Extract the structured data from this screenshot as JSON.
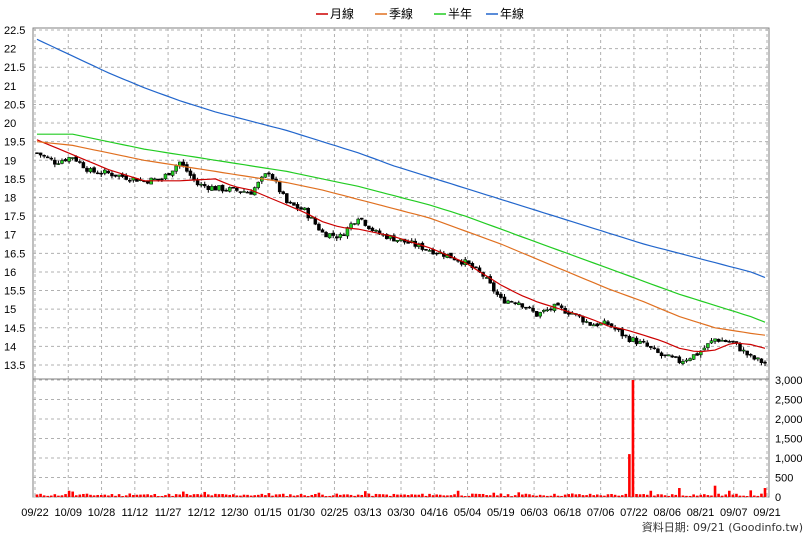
{
  "chart_data": [
    {
      "type": "candlestick",
      "title": "",
      "legend_position": "top-center",
      "legend": [
        {
          "name": "月線",
          "color": "#cc0000"
        },
        {
          "name": "季線",
          "color": "#e07020"
        },
        {
          "name": "半年",
          "color": "#22cc22"
        },
        {
          "name": "年線",
          "color": "#2266cc"
        }
      ],
      "ylim": [
        13.25,
        22.5
      ],
      "yticks": [
        "13.5",
        "14",
        "14.5",
        "15",
        "15.5",
        "16",
        "16.5",
        "17",
        "17.5",
        "18",
        "18.5",
        "19",
        "19.5",
        "20",
        "20.5",
        "21",
        "21.5",
        "22",
        "22.5"
      ],
      "x_labels": [
        "09/22",
        "10/09",
        "10/28",
        "11/12",
        "11/27",
        "12/12",
        "12/30",
        "01/15",
        "01/30",
        "02/25",
        "03/13",
        "03/30",
        "04/16",
        "05/04",
        "05/19",
        "06/03",
        "06/18",
        "07/06",
        "07/22",
        "08/06",
        "08/21",
        "09/07",
        "09/21"
      ],
      "close_path": [
        [
          0,
          19.2
        ],
        [
          5,
          18.95
        ],
        [
          10,
          19.1
        ],
        [
          15,
          18.7
        ],
        [
          20,
          18.65
        ],
        [
          25,
          18.55
        ],
        [
          30,
          18.45
        ],
        [
          35,
          18.5
        ],
        [
          40,
          18.95
        ],
        [
          45,
          18.35
        ],
        [
          50,
          18.25
        ],
        [
          55,
          18.2
        ],
        [
          60,
          18.15
        ],
        [
          65,
          18.7
        ],
        [
          70,
          17.85
        ],
        [
          75,
          17.65
        ],
        [
          80,
          17.05
        ],
        [
          85,
          16.95
        ],
        [
          90,
          17.5
        ],
        [
          95,
          17.05
        ],
        [
          100,
          16.9
        ],
        [
          105,
          16.75
        ],
        [
          110,
          16.6
        ],
        [
          115,
          16.45
        ],
        [
          120,
          16.25
        ],
        [
          125,
          15.9
        ],
        [
          130,
          15.25
        ],
        [
          135,
          15.2
        ],
        [
          140,
          14.85
        ],
        [
          145,
          15.05
        ],
        [
          150,
          14.9
        ],
        [
          155,
          14.6
        ],
        [
          160,
          14.6
        ],
        [
          165,
          14.25
        ],
        [
          170,
          14.05
        ],
        [
          175,
          13.75
        ],
        [
          180,
          13.6
        ],
        [
          185,
          13.8
        ],
        [
          190,
          14.2
        ],
        [
          195,
          14.1
        ],
        [
          200,
          13.7
        ],
        [
          204,
          13.55
        ]
      ],
      "series": [
        {
          "name": "月線",
          "color": "#cc0000",
          "values": [
            [
              0,
              19.55
            ],
            [
              10,
              19.15
            ],
            [
              20,
              18.75
            ],
            [
              30,
              18.45
            ],
            [
              40,
              18.45
            ],
            [
              50,
              18.5
            ],
            [
              55,
              18.3
            ],
            [
              60,
              18.2
            ],
            [
              65,
              18.0
            ],
            [
              70,
              17.8
            ],
            [
              75,
              17.6
            ],
            [
              80,
              17.35
            ],
            [
              85,
              17.2
            ],
            [
              90,
              17.15
            ],
            [
              95,
              17.05
            ],
            [
              100,
              16.95
            ],
            [
              105,
              16.8
            ],
            [
              110,
              16.65
            ],
            [
              115,
              16.45
            ],
            [
              120,
              16.25
            ],
            [
              125,
              15.95
            ],
            [
              130,
              15.65
            ],
            [
              135,
              15.4
            ],
            [
              140,
              15.2
            ],
            [
              145,
              15.05
            ],
            [
              150,
              14.9
            ],
            [
              155,
              14.75
            ],
            [
              160,
              14.55
            ],
            [
              165,
              14.45
            ],
            [
              170,
              14.3
            ],
            [
              175,
              14.15
            ],
            [
              180,
              13.95
            ],
            [
              185,
              13.85
            ],
            [
              190,
              13.9
            ],
            [
              195,
              14.1
            ],
            [
              200,
              14.05
            ],
            [
              204,
              13.95
            ]
          ]
        },
        {
          "name": "季線",
          "color": "#e07020",
          "values": [
            [
              0,
              19.5
            ],
            [
              10,
              19.4
            ],
            [
              20,
              19.2
            ],
            [
              30,
              19.0
            ],
            [
              40,
              18.85
            ],
            [
              50,
              18.7
            ],
            [
              60,
              18.55
            ],
            [
              70,
              18.4
            ],
            [
              80,
              18.2
            ],
            [
              90,
              17.95
            ],
            [
              100,
              17.7
            ],
            [
              110,
              17.45
            ],
            [
              120,
              17.1
            ],
            [
              130,
              16.75
            ],
            [
              140,
              16.35
            ],
            [
              150,
              15.95
            ],
            [
              160,
              15.55
            ],
            [
              170,
              15.2
            ],
            [
              180,
              14.8
            ],
            [
              190,
              14.5
            ],
            [
              200,
              14.35
            ],
            [
              204,
              14.3
            ]
          ]
        },
        {
          "name": "半年",
          "color": "#22cc22",
          "values": [
            [
              0,
              19.7
            ],
            [
              10,
              19.7
            ],
            [
              20,
              19.5
            ],
            [
              30,
              19.3
            ],
            [
              40,
              19.15
            ],
            [
              50,
              19.0
            ],
            [
              60,
              18.85
            ],
            [
              70,
              18.7
            ],
            [
              80,
              18.5
            ],
            [
              90,
              18.3
            ],
            [
              100,
              18.05
            ],
            [
              110,
              17.8
            ],
            [
              120,
              17.5
            ],
            [
              130,
              17.15
            ],
            [
              140,
              16.8
            ],
            [
              150,
              16.45
            ],
            [
              160,
              16.1
            ],
            [
              170,
              15.75
            ],
            [
              180,
              15.4
            ],
            [
              190,
              15.1
            ],
            [
              200,
              14.8
            ],
            [
              204,
              14.65
            ]
          ]
        },
        {
          "name": "年線",
          "color": "#2266cc",
          "values": [
            [
              0,
              22.25
            ],
            [
              10,
              21.8
            ],
            [
              20,
              21.35
            ],
            [
              30,
              20.95
            ],
            [
              40,
              20.6
            ],
            [
              50,
              20.3
            ],
            [
              60,
              20.05
            ],
            [
              70,
              19.8
            ],
            [
              80,
              19.5
            ],
            [
              90,
              19.2
            ],
            [
              100,
              18.85
            ],
            [
              110,
              18.55
            ],
            [
              120,
              18.25
            ],
            [
              130,
              17.95
            ],
            [
              140,
              17.65
            ],
            [
              150,
              17.35
            ],
            [
              160,
              17.05
            ],
            [
              170,
              16.75
            ],
            [
              180,
              16.5
            ],
            [
              190,
              16.25
            ],
            [
              200,
              16.0
            ],
            [
              204,
              15.85
            ]
          ]
        }
      ]
    },
    {
      "type": "bar",
      "xlabel": "",
      "ylabel": "",
      "ylim": [
        0,
        3000
      ],
      "yticks": [
        "0",
        "500",
        "1,000",
        "1,500",
        "2,000",
        "2,500",
        "3,000"
      ],
      "color": "#ff0000",
      "base_volume": 55,
      "spikes": [
        [
          9,
          160
        ],
        [
          10,
          140
        ],
        [
          26,
          90
        ],
        [
          41,
          140
        ],
        [
          47,
          130
        ],
        [
          58,
          60
        ],
        [
          65,
          100
        ],
        [
          79,
          110
        ],
        [
          92,
          150
        ],
        [
          97,
          70
        ],
        [
          110,
          80
        ],
        [
          118,
          160
        ],
        [
          128,
          110
        ],
        [
          135,
          120
        ],
        [
          150,
          90
        ],
        [
          160,
          70
        ],
        [
          166,
          1100
        ],
        [
          167,
          3000
        ],
        [
          172,
          160
        ],
        [
          180,
          230
        ],
        [
          190,
          290
        ],
        [
          194,
          160
        ],
        [
          200,
          170
        ],
        [
          204,
          230
        ]
      ]
    }
  ],
  "credit": "資料日期: 09/21  (Goodinfo.tw)"
}
